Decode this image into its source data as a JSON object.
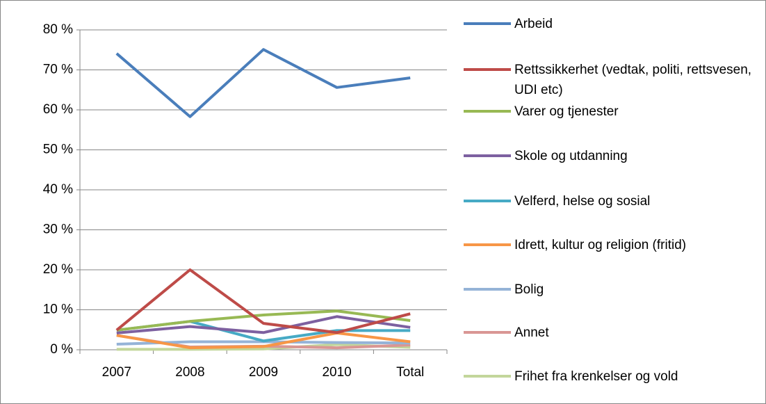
{
  "chart_data": {
    "type": "line",
    "categories": [
      "2007",
      "2008",
      "2009",
      "2010",
      "Total"
    ],
    "ylim": [
      0,
      80
    ],
    "yticks": [
      {
        "value": 0,
        "label": "0 %"
      },
      {
        "value": 10,
        "label": "10 %"
      },
      {
        "value": 20,
        "label": "20 %"
      },
      {
        "value": 30,
        "label": "30 %"
      },
      {
        "value": 40,
        "label": "40 %"
      },
      {
        "value": 50,
        "label": "50 %"
      },
      {
        "value": 60,
        "label": "60 %"
      },
      {
        "value": 70,
        "label": "70 %"
      },
      {
        "value": 80,
        "label": "80 %"
      }
    ],
    "grid": true,
    "legend": "right",
    "series": [
      {
        "name": "Arbeid",
        "color": "#4a7ebb",
        "values": [
          74.1,
          58.3,
          75.1,
          65.6,
          68.0
        ]
      },
      {
        "name": "Rettssikkerhet (vedtak, politi, rettsvesen, UDI etc)",
        "color": "#be4b48",
        "values": [
          4.9,
          20.0,
          6.6,
          4.3,
          9.0
        ]
      },
      {
        "name": "Varer og tjenester",
        "color": "#98b954",
        "values": [
          4.9,
          7.1,
          8.7,
          9.7,
          7.3
        ]
      },
      {
        "name": "Skole og utdanning",
        "color": "#7d60a0",
        "values": [
          4.2,
          5.8,
          4.3,
          8.3,
          5.6
        ]
      },
      {
        "name": "Velferd, helse og sosial",
        "color": "#46aac5",
        "values": [
          4.9,
          7.1,
          2.2,
          4.8,
          4.8
        ]
      },
      {
        "name": "Idrett, kultur og religion (fritid)",
        "color": "#f79646",
        "values": [
          3.6,
          0.5,
          0.8,
          4.2,
          2.0
        ]
      },
      {
        "name": "Bolig",
        "color": "#95b3d7",
        "values": [
          1.4,
          2.0,
          2.0,
          1.8,
          1.7
        ]
      },
      {
        "name": "Annet",
        "color": "#d99694",
        "values": [
          3.6,
          0.7,
          0.9,
          0.5,
          1.2
        ]
      },
      {
        "name": "Frihet fra krenkelser og vold",
        "color": "#c3d69b",
        "values": [
          0.1,
          0.1,
          0.2,
          1.3,
          0.6
        ]
      }
    ]
  }
}
